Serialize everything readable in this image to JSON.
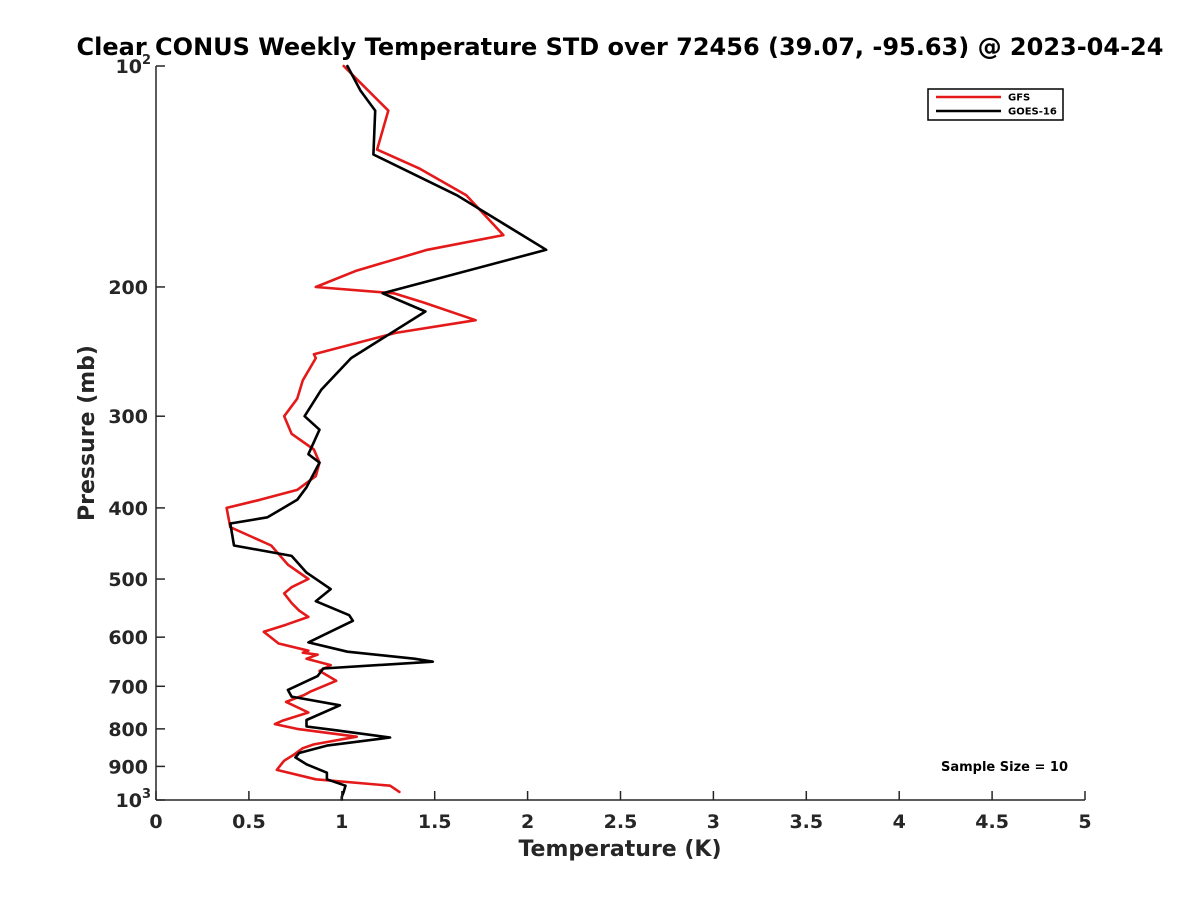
{
  "chart_data": {
    "type": "line",
    "title": "Clear CONUS Weekly Temperature STD over 72456 (39.07, -95.63) @ 2023-04-24",
    "xlabel": "Temperature (K)",
    "ylabel": "Pressure (mb)",
    "xlim": [
      0,
      5
    ],
    "ylim": [
      1000,
      100
    ],
    "y_scale": "log",
    "y_reversed": true,
    "grid": false,
    "x_ticks": [
      0,
      0.5,
      1,
      1.5,
      2,
      2.5,
      3,
      3.5,
      4,
      4.5,
      5
    ],
    "x_tick_labels": [
      "0",
      "0.5",
      "1",
      "1.5",
      "2",
      "2.5",
      "3",
      "3.5",
      "4",
      "4.5",
      "5"
    ],
    "y_ticks": [
      {
        "value": 100,
        "label": "10",
        "sup": "2"
      },
      {
        "value": 200,
        "label": "200"
      },
      {
        "value": 300,
        "label": "300"
      },
      {
        "value": 400,
        "label": "400"
      },
      {
        "value": 500,
        "label": "500"
      },
      {
        "value": 600,
        "label": "600"
      },
      {
        "value": 700,
        "label": "700"
      },
      {
        "value": 800,
        "label": "800"
      },
      {
        "value": 900,
        "label": "900"
      },
      {
        "value": 1000,
        "label": "10",
        "sup": "3"
      }
    ],
    "legend_position": "top-right",
    "annotation": "Sample Size = 10",
    "series": [
      {
        "name": "GFS",
        "color": "#e41a1a",
        "points": [
          [
            1.31,
            975
          ],
          [
            1.26,
            956
          ],
          [
            0.86,
            937
          ],
          [
            0.65,
            910
          ],
          [
            0.68,
            890
          ],
          [
            0.69,
            884
          ],
          [
            0.74,
            868
          ],
          [
            0.79,
            850
          ],
          [
            0.85,
            840
          ],
          [
            1.08,
            820
          ],
          [
            0.76,
            800
          ],
          [
            0.64,
            788
          ],
          [
            0.68,
            780
          ],
          [
            0.82,
            760
          ],
          [
            0.7,
            735
          ],
          [
            0.8,
            719
          ],
          [
            0.83,
            712
          ],
          [
            0.97,
            688
          ],
          [
            0.88,
            667
          ],
          [
            0.94,
            655
          ],
          [
            0.81,
            642
          ],
          [
            0.87,
            634
          ],
          [
            0.79,
            630
          ],
          [
            0.82,
            626
          ],
          [
            0.66,
            612
          ],
          [
            0.58,
            590
          ],
          [
            0.7,
            577
          ],
          [
            0.82,
            563
          ],
          [
            0.77,
            552
          ],
          [
            0.73,
            539
          ],
          [
            0.69,
            523
          ],
          [
            0.73,
            513
          ],
          [
            0.82,
            500
          ],
          [
            0.71,
            478
          ],
          [
            0.62,
            450
          ],
          [
            0.4,
            425
          ],
          [
            0.38,
            400
          ],
          [
            0.56,
            390
          ],
          [
            0.76,
            378
          ],
          [
            0.86,
            362
          ],
          [
            0.88,
            347
          ],
          [
            0.85,
            333
          ],
          [
            0.73,
            317
          ],
          [
            0.69,
            300
          ],
          [
            0.76,
            284
          ],
          [
            0.79,
            268
          ],
          [
            0.86,
            250
          ],
          [
            0.85,
            247
          ],
          [
            1.29,
            231
          ],
          [
            1.72,
            222
          ],
          [
            1.44,
            210
          ],
          [
            1.28,
            204
          ],
          [
            0.86,
            200
          ],
          [
            1.08,
            190
          ],
          [
            1.46,
            178
          ],
          [
            1.87,
            170
          ],
          [
            1.67,
            150
          ],
          [
            1.42,
            138
          ],
          [
            1.19,
            130
          ],
          [
            1.25,
            115
          ],
          [
            1.11,
            106
          ],
          [
            1.01,
            100
          ]
        ]
      },
      {
        "name": "GOES-16",
        "color": "#000000",
        "points": [
          [
            1.0,
            998
          ],
          [
            1.0,
            990
          ],
          [
            1.01,
            975
          ],
          [
            1.02,
            956
          ],
          [
            0.92,
            937
          ],
          [
            0.92,
            918
          ],
          [
            0.81,
            894
          ],
          [
            0.75,
            875
          ],
          [
            0.77,
            863
          ],
          [
            0.92,
            843
          ],
          [
            1.26,
            822
          ],
          [
            0.96,
            803
          ],
          [
            0.81,
            794
          ],
          [
            0.81,
            778
          ],
          [
            0.99,
            743
          ],
          [
            0.73,
            723
          ],
          [
            0.71,
            708
          ],
          [
            0.87,
            678
          ],
          [
            0.9,
            662
          ],
          [
            1.49,
            648
          ],
          [
            1.39,
            642
          ],
          [
            1.03,
            628
          ],
          [
            0.82,
            610
          ],
          [
            1.06,
            570
          ],
          [
            1.04,
            560
          ],
          [
            0.86,
            536
          ],
          [
            0.94,
            516
          ],
          [
            0.81,
            490
          ],
          [
            0.73,
            465
          ],
          [
            0.42,
            450
          ],
          [
            0.4,
            420
          ],
          [
            0.6,
            412
          ],
          [
            0.76,
            390
          ],
          [
            0.81,
            375
          ],
          [
            0.88,
            347
          ],
          [
            0.82,
            338
          ],
          [
            0.88,
            313
          ],
          [
            0.8,
            300
          ],
          [
            0.89,
            276
          ],
          [
            1.05,
            250
          ],
          [
            1.45,
            216
          ],
          [
            1.22,
            204
          ],
          [
            2.1,
            178
          ],
          [
            1.62,
            150
          ],
          [
            1.17,
            132
          ],
          [
            1.18,
            115
          ],
          [
            1.1,
            108
          ],
          [
            1.03,
            100
          ]
        ]
      }
    ]
  }
}
